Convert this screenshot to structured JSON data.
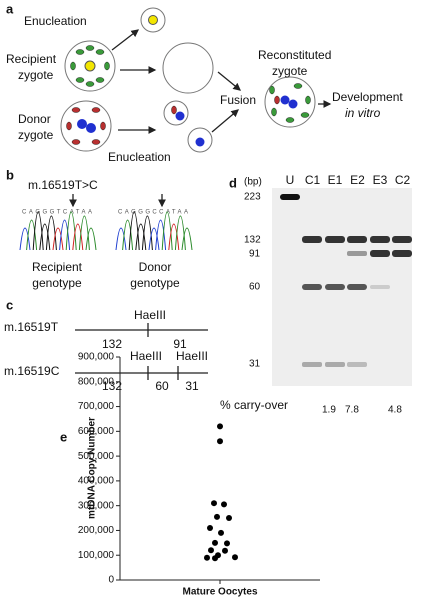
{
  "panels": {
    "a": {
      "letter": "a",
      "enucleation_top": "Enucleation",
      "recipient": [
        "Recipient",
        "zygote"
      ],
      "donor": [
        "Donor",
        "zygote"
      ],
      "enucleation_bottom": "Enucleation",
      "fusion": "Fusion",
      "reconstituted": [
        "Reconstituted",
        "zygote"
      ],
      "development": "Development",
      "in_vitro": "in vitro"
    },
    "b": {
      "letter": "b",
      "mutation": "m.16519T>C",
      "seq_recipient": "CAGGGTCATAA",
      "seq_donor": "CAGGGCCATAA",
      "recipient": [
        "Recipient",
        "genotype"
      ],
      "donor": [
        "Donor",
        "genotype"
      ]
    },
    "c": {
      "letter": "c",
      "allele_t": "m.16519T",
      "allele_c": "m.16519C",
      "enzyme": "HaeIII",
      "t_fragments": [
        "132",
        "91"
      ],
      "c_fragments": [
        "132",
        "60",
        "31"
      ]
    },
    "d": {
      "letter": "d",
      "unit": "(bp)",
      "lanes": [
        "U",
        "C1",
        "E1",
        "E2",
        "E3",
        "C2"
      ],
      "sizes": [
        "223",
        "132",
        "91",
        "60",
        "31"
      ],
      "carry_label": "% carry-over",
      "carry_values": [
        "1.9",
        "7.8",
        "4.8"
      ]
    }
  },
  "chart_data": {
    "type": "scatter",
    "letter": "e",
    "ylabel": "mtDNA Copy Number",
    "categories": [
      "Mature Oocytes"
    ],
    "color": "#000000",
    "values": [
      620000,
      560000,
      310000,
      305000,
      255000,
      250000,
      210000,
      190000,
      150000,
      148000,
      120000,
      118000,
      100000,
      90000,
      88000,
      92000
    ],
    "ylim": [
      0,
      900000
    ],
    "yticks": [
      0,
      {
        "value": 100000,
        "label": "100,000"
      },
      {
        "value": 200000,
        "label": "200,000"
      },
      {
        "value": 300000,
        "label": "300,000"
      },
      {
        "value": 400000,
        "label": "400,000"
      },
      {
        "value": 500000,
        "label": "500,000"
      },
      {
        "value": 600000,
        "label": "600,000"
      },
      {
        "value": 700000,
        "label": "700,000"
      },
      {
        "value": 800000,
        "label": "800,000"
      },
      {
        "value": 900000,
        "label": "900,000"
      }
    ]
  }
}
